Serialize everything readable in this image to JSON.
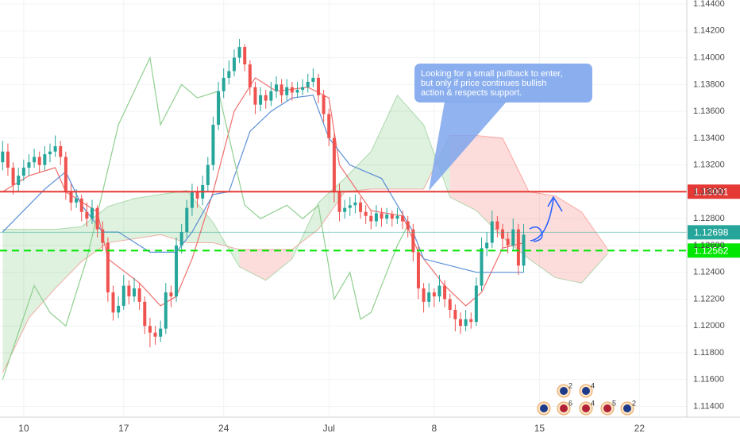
{
  "chart_data": {
    "type": "candlestick",
    "ohlc": [
      [
        1.1322,
        1.1338,
        1.1316,
        1.133
      ],
      [
        1.133,
        1.1336,
        1.1312,
        1.1318
      ],
      [
        1.1318,
        1.1322,
        1.1298,
        1.1305
      ],
      [
        1.1305,
        1.1318,
        1.13,
        1.1312
      ],
      [
        1.1312,
        1.1324,
        1.1308,
        1.1318
      ],
      [
        1.1318,
        1.1328,
        1.1312,
        1.1322
      ],
      [
        1.1322,
        1.1332,
        1.1318,
        1.1326
      ],
      [
        1.1326,
        1.133,
        1.1314,
        1.132
      ],
      [
        1.132,
        1.1334,
        1.1316,
        1.1328
      ],
      [
        1.1328,
        1.1336,
        1.1322,
        1.133
      ],
      [
        1.133,
        1.1342,
        1.1326,
        1.1334
      ],
      [
        1.1334,
        1.1338,
        1.132,
        1.1326
      ],
      [
        1.1326,
        1.133,
        1.1294,
        1.13
      ],
      [
        1.13,
        1.1306,
        1.1286,
        1.1292
      ],
      [
        1.1292,
        1.1302,
        1.1288,
        1.1295
      ],
      [
        1.1295,
        1.1298,
        1.1278,
        1.1285
      ],
      [
        1.1285,
        1.1292,
        1.1274,
        1.128
      ],
      [
        1.128,
        1.1294,
        1.1276,
        1.1288
      ],
      [
        1.1288,
        1.129,
        1.1266,
        1.1272
      ],
      [
        1.1272,
        1.1278,
        1.1256,
        1.1262
      ],
      [
        1.1262,
        1.1266,
        1.1218,
        1.1225
      ],
      [
        1.1225,
        1.123,
        1.1204,
        1.121
      ],
      [
        1.121,
        1.1222,
        1.1206,
        1.1215
      ],
      [
        1.1215,
        1.1238,
        1.1212,
        1.123
      ],
      [
        1.123,
        1.1234,
        1.1216,
        1.1222
      ],
      [
        1.1222,
        1.1236,
        1.1218,
        1.1228
      ],
      [
        1.1228,
        1.1232,
        1.1212,
        1.1218
      ],
      [
        1.1218,
        1.1222,
        1.1194,
        1.12
      ],
      [
        1.12,
        1.1206,
        1.1184,
        1.1195
      ],
      [
        1.1195,
        1.12,
        1.1186,
        1.1192
      ],
      [
        1.1192,
        1.1204,
        1.1188,
        1.1198
      ],
      [
        1.1198,
        1.1232,
        1.1194,
        1.1225
      ],
      [
        1.1225,
        1.123,
        1.1214,
        1.1222
      ],
      [
        1.1222,
        1.1266,
        1.1218,
        1.126
      ],
      [
        1.126,
        1.1276,
        1.1254,
        1.127
      ],
      [
        1.127,
        1.1294,
        1.1266,
        1.1288
      ],
      [
        1.1288,
        1.1306,
        1.1282,
        1.13
      ],
      [
        1.13,
        1.1304,
        1.1288,
        1.1295
      ],
      [
        1.1295,
        1.1312,
        1.129,
        1.1305
      ],
      [
        1.1305,
        1.1326,
        1.13,
        1.132
      ],
      [
        1.132,
        1.1356,
        1.1316,
        1.135
      ],
      [
        1.135,
        1.1382,
        1.1346,
        1.1375
      ],
      [
        1.1375,
        1.1392,
        1.137,
        1.1385
      ],
      [
        1.1385,
        1.1398,
        1.138,
        1.139
      ],
      [
        1.139,
        1.1406,
        1.1386,
        1.14
      ],
      [
        1.14,
        1.1414,
        1.1396,
        1.1408
      ],
      [
        1.1408,
        1.141,
        1.139,
        1.1395
      ],
      [
        1.1395,
        1.1398,
        1.1372,
        1.1378
      ],
      [
        1.1378,
        1.1382,
        1.1358,
        1.1365
      ],
      [
        1.1365,
        1.1378,
        1.136,
        1.1372
      ],
      [
        1.1372,
        1.1376,
        1.1362,
        1.1368
      ],
      [
        1.1368,
        1.1382,
        1.1364,
        1.1375
      ],
      [
        1.1375,
        1.1386,
        1.137,
        1.138
      ],
      [
        1.138,
        1.1384,
        1.1366,
        1.1372
      ],
      [
        1.1372,
        1.1384,
        1.1368,
        1.1378
      ],
      [
        1.1378,
        1.1382,
        1.1368,
        1.1374
      ],
      [
        1.1374,
        1.1382,
        1.137,
        1.1376
      ],
      [
        1.1376,
        1.1384,
        1.1372,
        1.1378
      ],
      [
        1.1378,
        1.1388,
        1.1374,
        1.1382
      ],
      [
        1.1382,
        1.1392,
        1.1378,
        1.1385
      ],
      [
        1.1385,
        1.1388,
        1.1366,
        1.1372
      ],
      [
        1.1372,
        1.1376,
        1.1352,
        1.1358
      ],
      [
        1.1358,
        1.1362,
        1.1334,
        1.134
      ],
      [
        1.134,
        1.1344,
        1.1292,
        1.13
      ],
      [
        1.13,
        1.1306,
        1.1278,
        1.1285
      ],
      [
        1.1285,
        1.1294,
        1.128,
        1.1288
      ],
      [
        1.1288,
        1.1296,
        1.1282,
        1.129
      ],
      [
        1.129,
        1.1298,
        1.1284,
        1.1292
      ],
      [
        1.1292,
        1.1296,
        1.128,
        1.1285
      ],
      [
        1.1285,
        1.129,
        1.1276,
        1.1282
      ],
      [
        1.1282,
        1.1286,
        1.1272,
        1.1278
      ],
      [
        1.1278,
        1.129,
        1.1274,
        1.1284
      ],
      [
        1.1284,
        1.1288,
        1.1274,
        1.128
      ],
      [
        1.128,
        1.1288,
        1.1276,
        1.1283
      ],
      [
        1.1283,
        1.1286,
        1.1274,
        1.128
      ],
      [
        1.128,
        1.1288,
        1.1276,
        1.1282
      ],
      [
        1.1282,
        1.1286,
        1.1272,
        1.1278
      ],
      [
        1.1278,
        1.1282,
        1.1266,
        1.1272
      ],
      [
        1.1272,
        1.1276,
        1.1248,
        1.1255
      ],
      [
        1.1255,
        1.126,
        1.122,
        1.1228
      ],
      [
        1.1228,
        1.1232,
        1.121,
        1.1218
      ],
      [
        1.1218,
        1.1232,
        1.1214,
        1.1225
      ],
      [
        1.1225,
        1.1228,
        1.1214,
        1.1222
      ],
      [
        1.1222,
        1.1238,
        1.1218,
        1.123
      ],
      [
        1.123,
        1.1234,
        1.1214,
        1.122
      ],
      [
        1.122,
        1.1224,
        1.1206,
        1.1212
      ],
      [
        1.1212,
        1.1216,
        1.1196,
        1.1205
      ],
      [
        1.1205,
        1.121,
        1.1194,
        1.12
      ],
      [
        1.12,
        1.1212,
        1.1196,
        1.1205
      ],
      [
        1.1205,
        1.121,
        1.1198,
        1.1203
      ],
      [
        1.1203,
        1.1236,
        1.12,
        1.123
      ],
      [
        1.123,
        1.1266,
        1.1226,
        1.1258
      ],
      [
        1.1258,
        1.127,
        1.1252,
        1.1262
      ],
      [
        1.1262,
        1.1286,
        1.1258,
        1.1278
      ],
      [
        1.1278,
        1.1282,
        1.1266,
        1.1272
      ],
      [
        1.1272,
        1.1276,
        1.1258,
        1.1265
      ],
      [
        1.1265,
        1.127,
        1.1254,
        1.126
      ],
      [
        1.126,
        1.128,
        1.1256,
        1.1272
      ],
      [
        1.1272,
        1.1276,
        1.1238,
        1.1245
      ],
      [
        1.1245,
        1.1276,
        1.124,
        1.1268
      ]
    ],
    "up_color": "#26a69a",
    "down_color": "#ef5350",
    "lines": [
      {
        "color": "#ef6f6c",
        "x": [
          0,
          5,
          10,
          12,
          18,
          20,
          26,
          30,
          33,
          36,
          40,
          44,
          48,
          52,
          58,
          62,
          64,
          70,
          76,
          79,
          84,
          88,
          91,
          95,
          99
        ],
        "values": [
          1.13,
          1.1312,
          1.1318,
          1.13,
          1.1285,
          1.125,
          1.1232,
          1.1215,
          1.1222,
          1.125,
          1.13,
          1.136,
          1.1385,
          1.1375,
          1.1378,
          1.137,
          1.132,
          1.1286,
          1.1282,
          1.1255,
          1.123,
          1.1215,
          1.1225,
          1.1258,
          1.1262
        ]
      },
      {
        "color": "#5b8fd6",
        "x": [
          0,
          8,
          12,
          15,
          19,
          22,
          28,
          33,
          36,
          40,
          43,
          47,
          51,
          55,
          59,
          62,
          66,
          72,
          78,
          80,
          84,
          90,
          95,
          99
        ],
        "values": [
          1.127,
          1.1302,
          1.1315,
          1.129,
          1.127,
          1.127,
          1.1255,
          1.1255,
          1.127,
          1.1298,
          1.13,
          1.1345,
          1.136,
          1.137,
          1.1372,
          1.134,
          1.132,
          1.131,
          1.127,
          1.125,
          1.1246,
          1.124,
          1.124,
          1.124
        ]
      },
      {
        "color": "#8fcf8f",
        "x": [
          0,
          6,
          9,
          12,
          16,
          22,
          28,
          30,
          34,
          37,
          41,
          46,
          49,
          54,
          57,
          60,
          63,
          66,
          68,
          70,
          72,
          75,
          77
        ],
        "values": [
          1.116,
          1.123,
          1.121,
          1.12,
          1.125,
          1.135,
          1.14,
          1.135,
          1.138,
          1.137,
          1.1375,
          1.129,
          1.128,
          1.129,
          1.128,
          1.129,
          1.122,
          1.124,
          1.1205,
          1.121,
          1.123,
          1.126,
          1.1275
        ]
      }
    ],
    "cloud": {
      "x": [
        0,
        5,
        10,
        15,
        20,
        25,
        30,
        35,
        40,
        45,
        50,
        55,
        60,
        65,
        70,
        75,
        80,
        85,
        90,
        95,
        100,
        105,
        110,
        115
      ],
      "span_a": [
        1.1272,
        1.1272,
        1.1272,
        1.1274,
        1.1289,
        1.1295,
        1.1298,
        1.1301,
        1.1277,
        1.1244,
        1.1234,
        1.125,
        1.1292,
        1.131,
        1.133,
        1.1372,
        1.135,
        1.1296,
        1.1286,
        1.1266,
        1.125,
        1.1236,
        1.1232,
        1.1254
      ],
      "span_b": [
        1.1165,
        1.1206,
        1.1228,
        1.1248,
        1.1262,
        1.1265,
        1.1268,
        1.1262,
        1.1262,
        1.1257,
        1.1257,
        1.1257,
        1.1272,
        1.13,
        1.1302,
        1.1302,
        1.1302,
        1.1342,
        1.1342,
        1.134,
        1.13,
        1.1297,
        1.1285,
        1.1257
      ],
      "up_color": "#4caf50",
      "down_color": "#f44336"
    },
    "levels": [
      {
        "value": 1.13001,
        "color": "#e53935",
        "style": "solid"
      },
      {
        "value": 1.12698,
        "color": "#26a69a",
        "style": "thin"
      },
      {
        "value": 1.12562,
        "color": "#00e600",
        "style": "dashed"
      }
    ],
    "annotation": [
      "Looking for a small pullback to enter,",
      "but only if price continues bullish",
      "action & respects support."
    ],
    "events": [
      "2",
      "4",
      "6",
      "4",
      "5",
      "2"
    ],
    "xlim": [
      -0.5,
      130
    ],
    "ylim": [
      1.1132,
      1.1443
    ],
    "xticks": [
      {
        "value": 4,
        "label": "10"
      },
      {
        "value": 23,
        "label": "17"
      },
      {
        "value": 42,
        "label": "24"
      },
      {
        "value": 62,
        "label": "Jul"
      },
      {
        "value": 82,
        "label": "8"
      },
      {
        "value": 102,
        "label": "15"
      },
      {
        "value": 121,
        "label": "22"
      }
    ],
    "yticks": [
      {
        "value": 1.114,
        "label": "1.11400"
      },
      {
        "value": 1.116,
        "label": "1.11600"
      },
      {
        "value": 1.118,
        "label": "1.11800"
      },
      {
        "value": 1.12,
        "label": "1.12000"
      },
      {
        "value": 1.122,
        "label": "1.12200"
      },
      {
        "value": 1.124,
        "label": "1.12400"
      },
      {
        "value": 1.126,
        "label": "1.12600"
      },
      {
        "value": 1.128,
        "label": "1.12800"
      },
      {
        "value": 1.13,
        "label": "1.13000"
      },
      {
        "value": 1.132,
        "label": "1.13200"
      },
      {
        "value": 1.134,
        "label": "1.13400"
      },
      {
        "value": 1.136,
        "label": "1.13600"
      },
      {
        "value": 1.138,
        "label": "1.13800"
      },
      {
        "value": 1.14,
        "label": "1.14000"
      },
      {
        "value": 1.142,
        "label": "1.14200"
      },
      {
        "value": 1.144,
        "label": "1.14400"
      }
    ],
    "grid": true
  }
}
